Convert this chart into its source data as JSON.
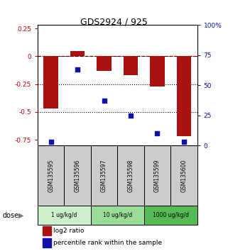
{
  "title": "GDS2924 / 925",
  "samples": [
    "GSM135595",
    "GSM135596",
    "GSM135597",
    "GSM135598",
    "GSM135599",
    "GSM135600"
  ],
  "log2_ratio": [
    -0.47,
    0.05,
    -0.13,
    -0.17,
    -0.27,
    -0.72
  ],
  "percentile_rank": [
    3,
    63,
    37,
    25,
    10,
    3
  ],
  "bar_color": "#aa1111",
  "dot_color": "#1111aa",
  "ylim_left": [
    -0.8,
    0.28
  ],
  "ylim_right": [
    0,
    100
  ],
  "yticks_left": [
    0.25,
    0.0,
    -0.25,
    -0.5,
    -0.75
  ],
  "yticks_right": [
    100,
    75,
    50,
    25,
    0
  ],
  "hlines_dotted": [
    -0.25,
    -0.5
  ],
  "dose_configs": [
    {
      "indices": [
        0,
        1
      ],
      "label": "1 ug/kg/d",
      "color": "#ccf0cc"
    },
    {
      "indices": [
        2,
        3
      ],
      "label": "10 ug/kg/d",
      "color": "#99dd99"
    },
    {
      "indices": [
        4,
        5
      ],
      "label": "1000 ug/kg/d",
      "color": "#55bb55"
    }
  ],
  "legend_bar_label": "log2 ratio",
  "legend_dot_label": "percentile rank within the sample",
  "dose_label": "dose",
  "bar_width": 0.55
}
